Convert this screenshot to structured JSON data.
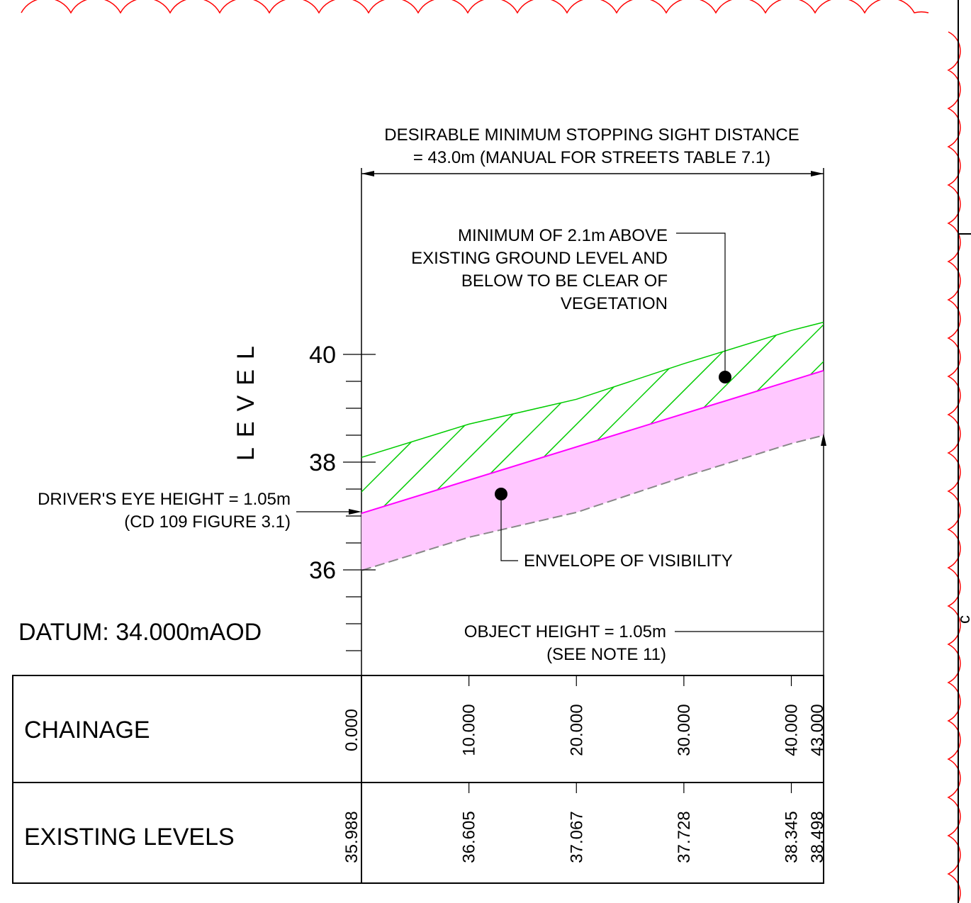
{
  "title": {
    "line1": "DESIRABLE MINIMUM STOPPING SIGHT DISTANCE",
    "line2": "= 43.0m (MANUAL FOR STREETS TABLE 7.1)"
  },
  "notes": {
    "vegetation": [
      "MINIMUM OF 2.1m ABOVE",
      "EXISTING GROUND LEVEL AND",
      "BELOW TO BE CLEAR OF",
      "VEGETATION"
    ],
    "driver": [
      "DRIVER'S EYE HEIGHT = 1.05m",
      "(CD 109 FIGURE 3.1)"
    ],
    "envelope": "ENVELOPE OF VISIBILITY",
    "object": [
      "OBJECT HEIGHT = 1.05m",
      "(SEE NOTE 11)"
    ]
  },
  "datum": "DATUM: 34.000mAOD",
  "axis": {
    "ylabel": "LEVEL",
    "tick_labels": [
      "40",
      "38",
      "36"
    ]
  },
  "table": {
    "chainage_label": "CHAINAGE",
    "levels_label": "EXISTING LEVELS",
    "chainage_values": [
      "0.000",
      "10.000",
      "20.000",
      "30.000",
      "40.000",
      "43.000"
    ],
    "level_values": [
      "35.988",
      "36.605",
      "37.067",
      "37.728",
      "38.345",
      "38.498"
    ]
  },
  "border_fragment": "c",
  "colors": {
    "revision_cloud": "#ff0000",
    "vegetation_hatch": "#00cc00",
    "sightline": "#ff00ff",
    "envelope_fill": "#ffc8ff",
    "ground_dash": "#888888"
  },
  "chart_data": {
    "type": "area",
    "y_unit": "m",
    "x_range": [
      0,
      43
    ],
    "y_range": [
      34.5,
      40
    ],
    "ground": {
      "x": [
        0,
        10,
        20,
        30,
        40,
        43
      ],
      "y": [
        35.988,
        36.605,
        37.067,
        37.728,
        38.345,
        38.498
      ]
    },
    "sightline": {
      "x": [
        0,
        43
      ],
      "y": [
        37.05,
        39.7
      ]
    },
    "clearance_height": 2.1
  }
}
